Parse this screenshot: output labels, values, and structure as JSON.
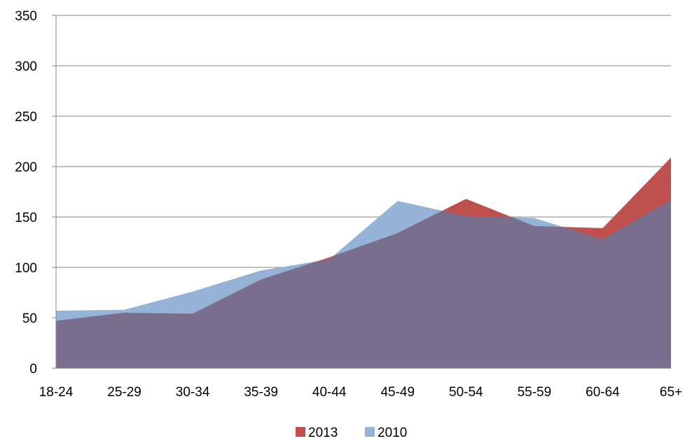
{
  "chart_data": {
    "type": "area",
    "categories": [
      "18-24",
      "25-29",
      "30-34",
      "35-39",
      "40-44",
      "45-49",
      "50-54",
      "55-59",
      "60-64",
      "65+"
    ],
    "series": [
      {
        "name": "2010",
        "color": "#95b3d7",
        "values": [
          57,
          58,
          76,
          97,
          108,
          166,
          151,
          149,
          128,
          167
        ]
      },
      {
        "name": "2013",
        "color": "#c0504d",
        "values": [
          47,
          55,
          54,
          88,
          110,
          134,
          168,
          141,
          139,
          209
        ]
      }
    ],
    "overlap_color": "#7a6e8f",
    "ylim": [
      0,
      350
    ],
    "yticks": [
      0,
      50,
      100,
      150,
      200,
      250,
      300,
      350
    ],
    "grid": true,
    "legend": {
      "position": "bottom",
      "order": [
        "2013",
        "2010"
      ]
    }
  }
}
